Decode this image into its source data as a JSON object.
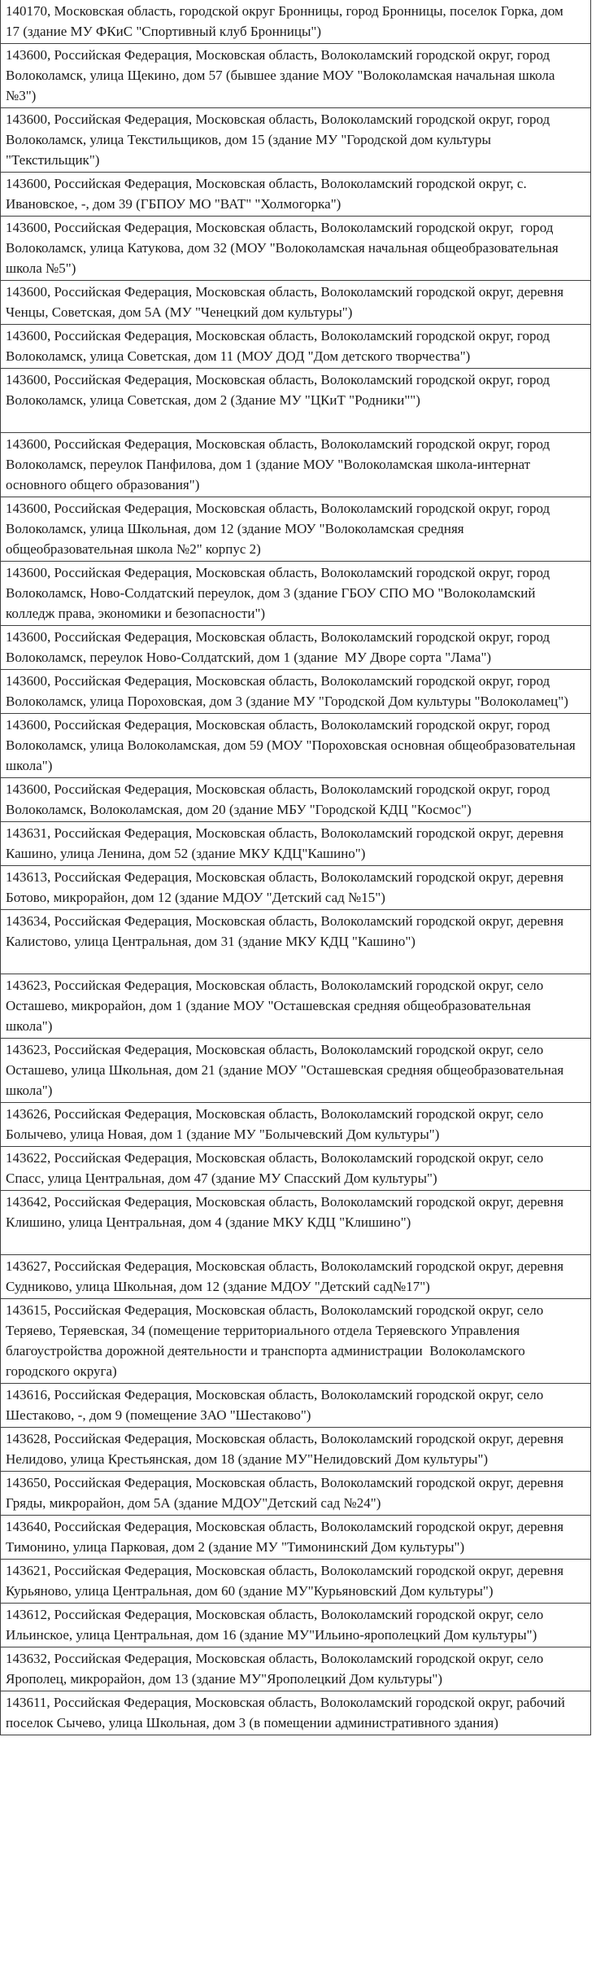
{
  "colors": {
    "border": "#404040",
    "text": "#1a1a1a",
    "background": "#ffffff"
  },
  "table": {
    "rows": [
      {
        "text": "140170, Московская область, городской округ Бронницы, город Бронницы, поселок Горка, дом 17 (здание МУ ФКиС \"Спортивный клуб Бронницы\")"
      },
      {
        "text": "143600, Российская Федерация, Московская область, Волоколамский городской округ, город Волоколамск, улица Щекино, дом 57 (бывшее здание МОУ \"Волоколамская начальная школа №3\")"
      },
      {
        "text": "143600, Российская Федерация, Московская область, Волоколамский городской округ, город Волоколамск, улица Текстильщиков, дом 15 (здание МУ \"Городской дом культуры \"Текстильщик\")"
      },
      {
        "text": "143600, Российская Федерация, Московская область, Волоколамский городской округ, с. Ивановское, -, дом 39 (ГБПОУ МО \"ВАТ\" \"Холмогорка\")"
      },
      {
        "text": "143600, Российская Федерация, Московская область, Волоколамский городской округ,  город Волоколамск, улица Катукова, дом 32 (МОУ \"Волоколамская начальная общеобразовательная школа №5\")"
      },
      {
        "text": "143600, Российская Федерация, Московская область, Волоколамский городской округ, деревня Ченцы, Советская, дом 5А (МУ \"Ченецкий дом культуры\")"
      },
      {
        "text": "143600, Российская Федерация, Московская область, Волоколамский городской округ, город Волоколамск, улица Советская, дом 11 (МОУ ДОД \"Дом детского творчества\")"
      },
      {
        "text": "143600, Российская Федерация, Московская область, Волоколамский городской округ, город Волоколамск, улица Советская, дом 2 (Здание МУ \"ЦКиТ \"Родники\"\")",
        "extra_blank_line": true
      },
      {
        "text": "143600, Российская Федерация, Московская область, Волоколамский городской округ, город Волоколамск, переулок Панфилова, дом 1 (здание МОУ \"Волоколамская школа-интернат основного общего образования\")"
      },
      {
        "text": "143600, Российская Федерация, Московская область, Волоколамский городской округ, город Волоколамск, улица Школьная, дом 12 (здание МОУ \"Волоколамская средняя общеобразовательная школа №2\" корпус 2)"
      },
      {
        "text": "143600, Российская Федерация, Московская область, Волоколамский городской округ, город Волоколамск, Ново-Солдатский переулок, дом 3 (здание ГБОУ СПО МО \"Волоколамский колледж права, экономики и безопасности\")"
      },
      {
        "text": "143600, Российская Федерация, Московская область, Волоколамский городской округ, город Волоколамск, переулок Ново-Солдатский, дом 1 (здание  МУ Дворе сорта \"Лама\")"
      },
      {
        "text": "143600, Российская Федерация, Московская область, Волоколамский городской округ, город Волоколамск, улица Пороховская, дом 3 (здание МУ \"Городской Дом культуры \"Волоколамец\")"
      },
      {
        "text": "143600, Российская Федерация, Московская область, Волоколамский городской округ, город Волоколамск, улица Волоколамская, дом 59 (МОУ \"Пороховская основная общеобразовательная школа\")"
      },
      {
        "text": "143600, Российская Федерация, Московская область, Волоколамский городской округ, город Волоколамск, Волоколамская, дом 20 (здание МБУ \"Городской КДЦ \"Космос\")"
      },
      {
        "text": "143631, Российская Федерация, Московская область, Волоколамский городской округ, деревня Кашино, улица Ленина, дом 52 (здание МКУ КДЦ\"Кашино\")"
      },
      {
        "text": "143613, Российская Федерация, Московская область, Волоколамский городской округ, деревня Ботово, микрорайон, дом 12 (здание МДОУ \"Детский сад №15\")"
      },
      {
        "text": "143634, Российская Федерация, Московская область, Волоколамский городской округ, деревня Калистово, улица Центральная, дом 31 (здание МКУ КДЦ \"Кашино\")",
        "extra_blank_line": true
      },
      {
        "text": "143623, Российская Федерация, Московская область, Волоколамский городской округ, село Осташево, микрорайон, дом 1 (здание МОУ \"Осташевская средняя общеобразовательная школа\")"
      },
      {
        "text": "143623, Российская Федерация, Московская область, Волоколамский городской округ, село Осташево, улица Школьная, дом 21 (здание МОУ \"Осташевская средняя общеобразовательная школа\")"
      },
      {
        "text": "143626, Российская Федерация, Московская область, Волоколамский городской округ, село Болычево, улица Новая, дом 1 (здание МУ \"Болычевский Дом культуры\")"
      },
      {
        "text": "143622, Российская Федерация, Московская область, Волоколамский городской округ, село Спасс, улица Центральная, дом 47 (здание МУ Спасский Дом культуры\")"
      },
      {
        "text": "143642, Российская Федерация, Московская область, Волоколамский городской округ, деревня Клишино, улица Центральная, дом 4 (здание МКУ КДЦ \"Клишино\")",
        "extra_blank_line": true
      },
      {
        "text": "143627, Российская Федерация, Московская область, Волоколамский городской округ, деревня Судниково, улица Школьная, дом 12 (здание МДОУ \"Детский сад№17\")"
      },
      {
        "text": "143615, Российская Федерация, Московская область, Волоколамский городской округ, село Теряево, Теряевская, 34 (помещение территориального отдела Теряевского Управления благоустройства дорожной деятельности и транспорта администрации  Волоколамского городского округа)"
      },
      {
        "text": "143616, Российская Федерация, Московская область, Волоколамский городской округ, село Шестаково, -, дом 9 (помещение ЗАО \"Шестаково\")"
      },
      {
        "text": "143628, Российская Федерация, Московская область, Волоколамский городской округ, деревня Нелидово, улица Крестьянская, дом 18 (здание МУ\"Нелидовский Дом культуры\")"
      },
      {
        "text": "143650, Российская Федерация, Московская область, Волоколамский городской округ, деревня Гряды, микрорайон, дом 5А (здание МДОУ\"Детский сад №24\")"
      },
      {
        "text": "143640, Российская Федерация, Московская область, Волоколамский городской округ, деревня Тимонино, улица Парковая, дом 2 (здание МУ \"Тимонинский Дом культуры\")"
      },
      {
        "text": "143621, Российская Федерация, Московская область, Волоколамский городской округ, деревня Курьяново, улица Центральная, дом 60 (здание МУ\"Курьяновский Дом культуры\")"
      },
      {
        "text": "143612, Российская Федерация, Московская область, Волоколамский городской округ, село Ильинское, улица Центральная, дом 16 (здание МУ\"Ильино-ярополецкий Дом культуры\")"
      },
      {
        "text": "143632, Российская Федерация, Московская область, Волоколамский городской округ, село Ярополец, микрорайон, дом 13 (здание МУ\"Ярополецкий Дом культуры\")"
      },
      {
        "text": "143611, Российская Федерация, Московская область, Волоколамский городской округ, рабочий поселок Сычево, улица Школьная, дом 3 (в помещении административного здания)"
      }
    ]
  }
}
